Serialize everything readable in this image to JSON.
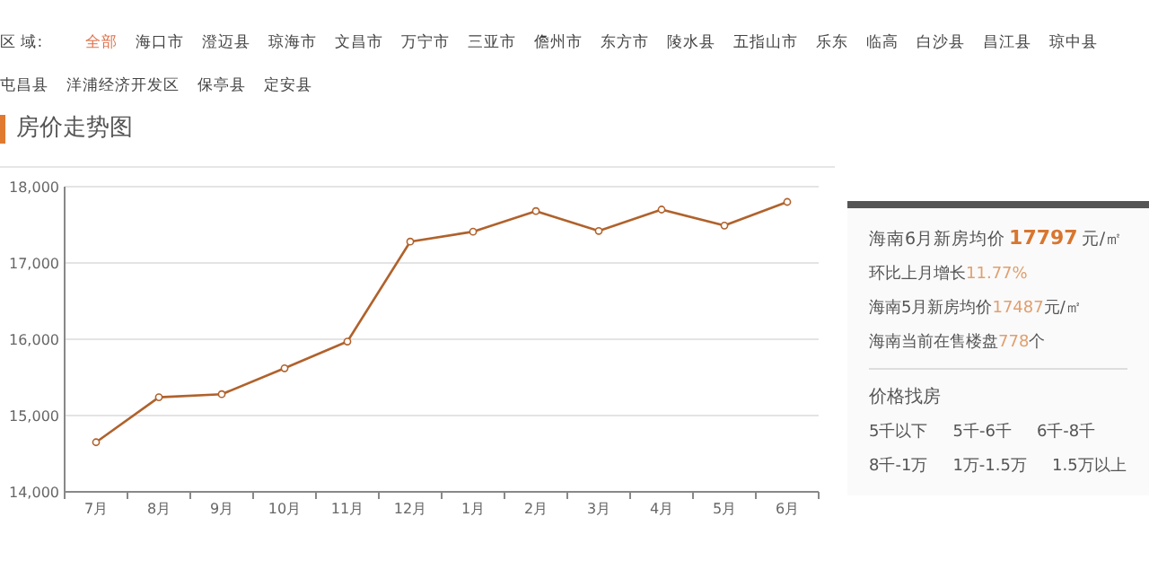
{
  "chart_data": {
    "type": "line",
    "title": "房价走势图",
    "categories": [
      "7月",
      "8月",
      "9月",
      "10月",
      "11月",
      "12月",
      "1月",
      "2月",
      "3月",
      "4月",
      "5月",
      "6月"
    ],
    "values": [
      14650,
      15240,
      15280,
      15620,
      15970,
      17280,
      17410,
      17680,
      17420,
      17700,
      17490,
      17800
    ],
    "color": "#b0622c",
    "marker": "circle",
    "grid": "y",
    "ylim": [
      14000,
      18000
    ],
    "yticks": [
      {
        "value": 14000,
        "label": "14,000"
      },
      {
        "value": 15000,
        "label": "15,000"
      },
      {
        "value": 16000,
        "label": "16,000"
      },
      {
        "value": 17000,
        "label": "17,000"
      },
      {
        "value": 18000,
        "label": "18,000"
      }
    ],
    "annotations": [
      "区 域:",
      "全部",
      "海口市",
      "澄迈县",
      "琼海市",
      "文昌市",
      "万宁市",
      "三亚市",
      "儋州市",
      "东方市",
      "陵水县",
      "五指山市",
      "乐东",
      "临高",
      "白沙县",
      "昌江县",
      "琼中县",
      "屯昌县",
      "洋浦经济开发区",
      "保亭县",
      "定安县",
      "海南6月新房均价",
      "17797",
      "元/㎡",
      "环比上月增长",
      "11.77%",
      "海南5月新房均价",
      "17487",
      "元/㎡",
      "海南当前在售楼盘",
      "778",
      "个",
      "价格找房",
      "5千以下",
      "5千-6千",
      "6千-8千",
      "8千-1万",
      "1万-1.5万",
      "1.5万以上"
    ]
  }
}
